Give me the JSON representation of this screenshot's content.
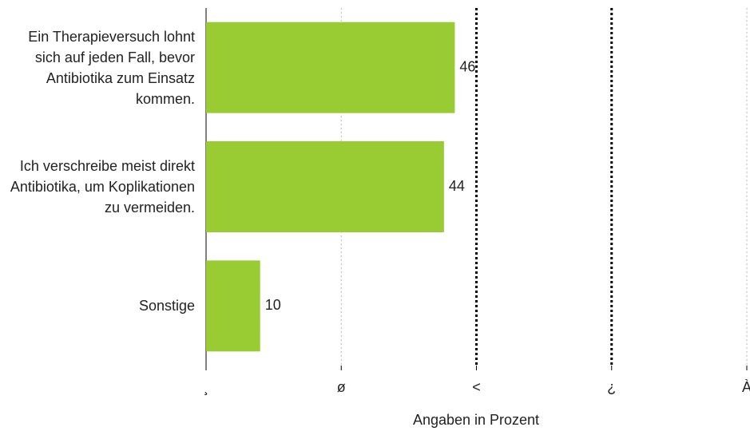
{
  "chart_data": {
    "type": "hbar",
    "categories": [
      "Ein Therapieversuch lohnt sich auf jeden Fall, bevor Antibiotika zum Einsatz kommen.",
      "Ich verschreibe meist direkt Antibiotika, um Koplikationen zu vermeiden.",
      "Sonstige"
    ],
    "values": [
      46,
      44,
      10
    ],
    "color": "#99cc33",
    "xlabel": "Angaben in Prozent",
    "xlim": [
      0,
      100
    ],
    "xticks": [
      {
        "value": 0,
        "label": "¸"
      },
      {
        "value": 25,
        "label": "ø"
      },
      {
        "value": 50,
        "label": "<"
      },
      {
        "value": 75,
        "label": "¿"
      },
      {
        "value": 100,
        "label": "À"
      }
    ],
    "grid": true
  }
}
